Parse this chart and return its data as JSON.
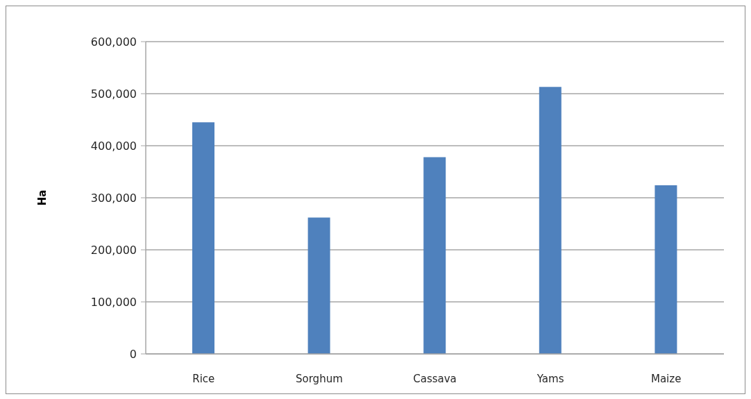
{
  "chart_data": {
    "type": "bar",
    "ylabel": "Ha",
    "categories": [
      "Rice",
      "Sorghum",
      "Cassava",
      "Yams",
      "Maize"
    ],
    "values": [
      445000,
      262000,
      378000,
      513000,
      324000
    ],
    "color": "#4f81bd",
    "ylim": [
      0,
      600000
    ],
    "yticks": [
      {
        "value": 0,
        "label": "0"
      },
      {
        "value": 100000,
        "label": "100,000"
      },
      {
        "value": 200000,
        "label": "200,000"
      },
      {
        "value": 300000,
        "label": "300,000"
      },
      {
        "value": 400000,
        "label": "400,000"
      },
      {
        "value": 500000,
        "label": "500,000"
      },
      {
        "value": 600000,
        "label": "600,000"
      }
    ],
    "grid": "y"
  }
}
